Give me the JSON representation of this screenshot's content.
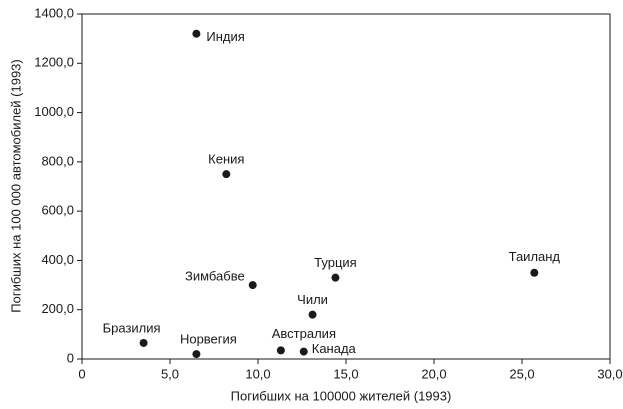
{
  "chart_data": {
    "type": "scatter",
    "xlabel": "Погибших на 100000 жителей (1993)",
    "ylabel": "Погибших на 100 000 автомобилей (1993)",
    "labels": [
      "Индия",
      "Кения",
      "Зимбабве",
      "Турция",
      "Таиланд",
      "Чили",
      "Бразилия",
      "Норвегия",
      "Австралия",
      "Канада"
    ],
    "x": [
      6.5,
      8.2,
      9.7,
      14.4,
      25.7,
      13.1,
      3.5,
      6.5,
      11.3,
      12.6
    ],
    "values": [
      1320,
      750,
      300,
      330,
      350,
      180,
      65,
      20,
      35,
      30
    ],
    "color": "#1a1a1a",
    "xlim": [
      0,
      30
    ],
    "xticks": [
      0,
      {
        "value": 5,
        "label": "5,0"
      },
      {
        "value": 10,
        "label": "10,0"
      },
      {
        "value": 15,
        "label": "15,0"
      },
      {
        "value": 20,
        "label": "20,0"
      },
      {
        "value": 25,
        "label": "25,0"
      },
      {
        "value": 30,
        "label": "30,0"
      }
    ],
    "ylim": [
      0,
      1400
    ],
    "yticks": [
      0,
      {
        "value": 200,
        "label": "200,0"
      },
      {
        "value": 400,
        "label": "400,0"
      },
      {
        "value": 600,
        "label": "600,0"
      },
      {
        "value": 800,
        "label": "800,0"
      },
      {
        "value": 1000,
        "label": "1000,0"
      },
      {
        "value": 1200,
        "label": "1200,0"
      },
      {
        "value": 1400,
        "label": "1400,0"
      }
    ],
    "grid": false
  }
}
